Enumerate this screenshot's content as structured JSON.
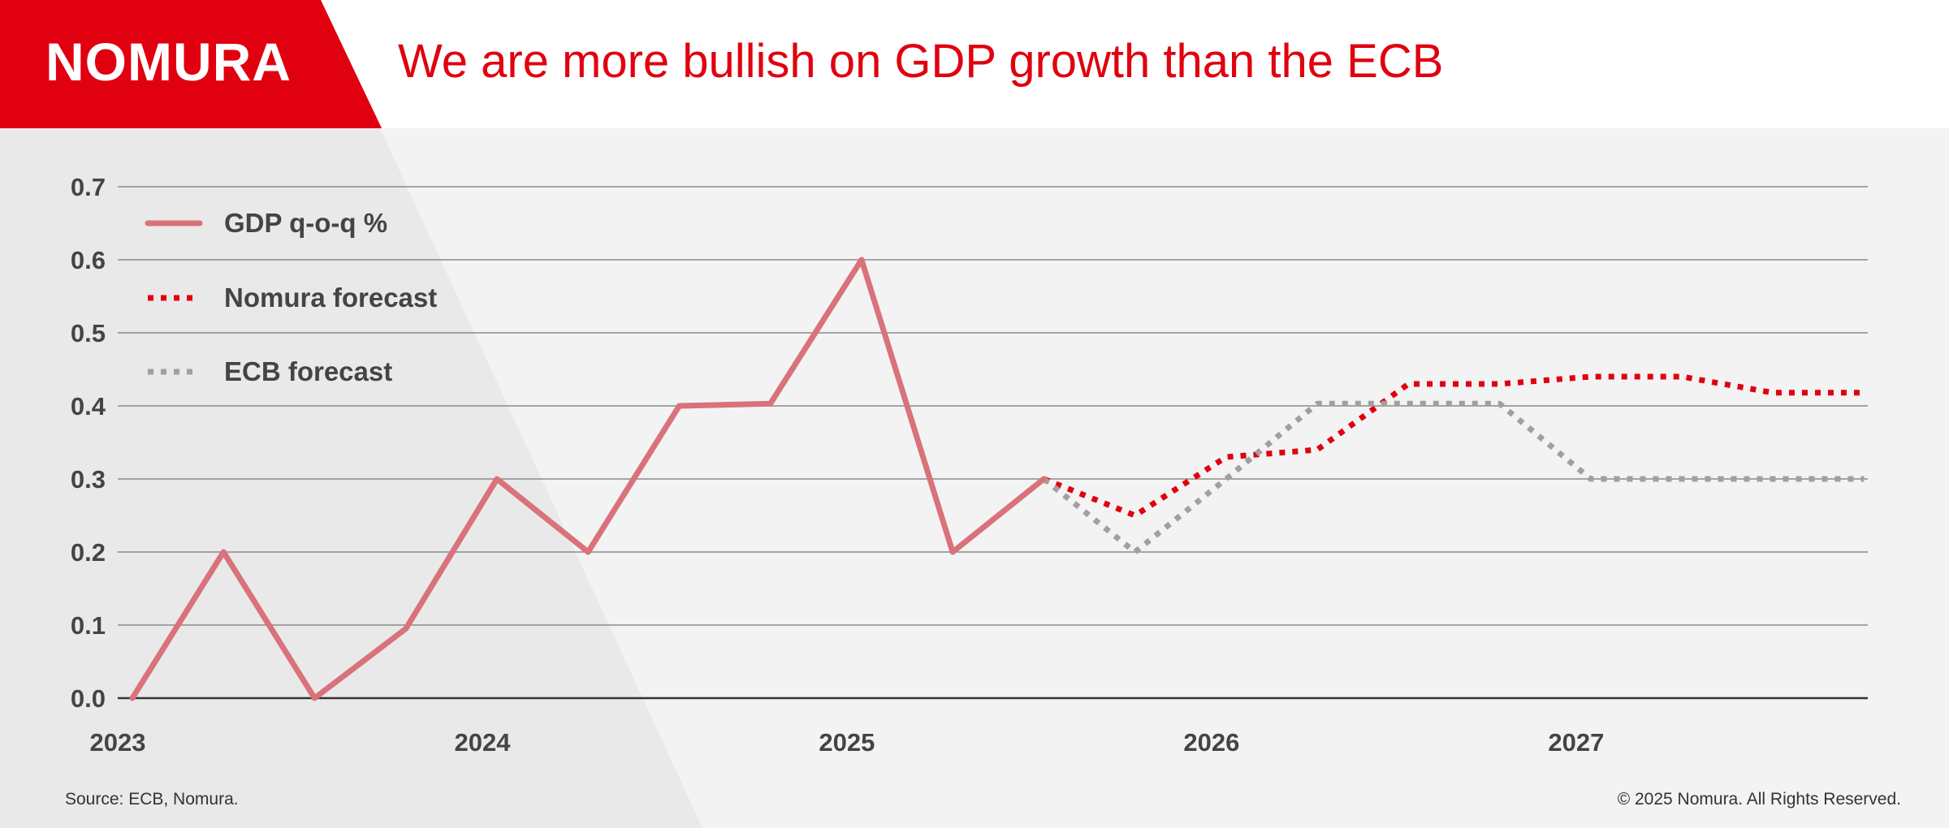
{
  "header": {
    "logo_text": "NOMURA",
    "title": "We are more bullish on GDP growth than the ECB"
  },
  "footer": {
    "source": "Source: ECB, Nomura.",
    "copyright": "© 2025 Nomura. All Rights Reserved."
  },
  "colors": {
    "brand_red": "#e0000f",
    "gdp_line": "#d9727a",
    "nomura_forecast": "#e0000f",
    "ecb_forecast": "#a0a0a0",
    "text_dark": "#444444"
  },
  "chart_data": {
    "type": "line",
    "title": "",
    "xlabel": "",
    "ylabel": "",
    "ylim": [
      0,
      0.7
    ],
    "xlim": [
      2023.0,
      2027.8
    ],
    "yticks": [
      "0.0",
      "0.1",
      "0.2",
      "0.3",
      "0.4",
      "0.5",
      "0.6",
      "0.7"
    ],
    "xticks": [
      "2023",
      "2024",
      "2025",
      "2026",
      "2027"
    ],
    "grid": true,
    "legend_position": "top-left",
    "series": [
      {
        "name": "GDP q-o-q %",
        "style": "solid",
        "color": "#d9727a",
        "x": [
          2023.04,
          2023.29,
          2023.54,
          2023.79,
          2024.04,
          2024.29,
          2024.54,
          2024.79,
          2025.04,
          2025.29,
          2025.54
        ],
        "y": [
          0.0,
          0.2,
          0.0,
          0.095,
          0.3,
          0.2,
          0.4,
          0.403,
          0.6,
          0.2,
          0.3
        ]
      },
      {
        "name": "Nomura forecast",
        "style": "dotted",
        "color": "#e0000f",
        "x": [
          2025.54,
          2025.79,
          2026.04,
          2026.29,
          2026.54,
          2026.79,
          2027.04,
          2027.29,
          2027.54,
          2027.79
        ],
        "y": [
          0.3,
          0.25,
          0.33,
          0.34,
          0.43,
          0.43,
          0.44,
          0.44,
          0.418,
          0.418
        ]
      },
      {
        "name": "ECB forecast",
        "style": "dotted",
        "color": "#a0a0a0",
        "x": [
          2025.54,
          2025.79,
          2026.04,
          2026.29,
          2026.54,
          2026.79,
          2027.04,
          2027.29,
          2027.54,
          2027.79
        ],
        "y": [
          0.3,
          0.2,
          0.3,
          0.403,
          0.403,
          0.403,
          0.3,
          0.3,
          0.3,
          0.3
        ]
      }
    ]
  }
}
